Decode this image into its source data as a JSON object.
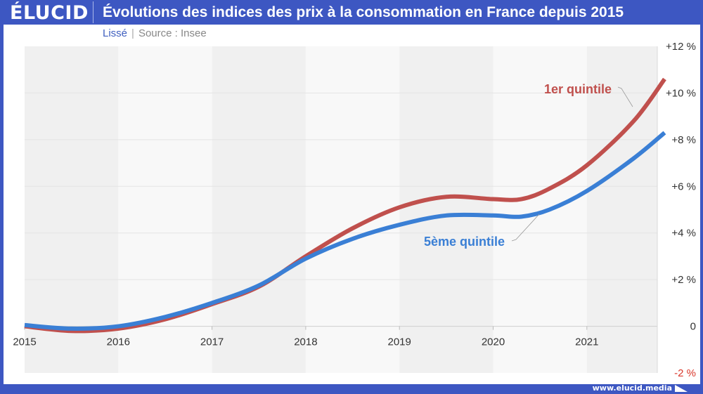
{
  "header": {
    "logo": "ÉLUCID",
    "title": "Évolutions des indices des prix à la consommation en France depuis 2015"
  },
  "subtitle": {
    "smoothing": "Lissé",
    "separator": "|",
    "source": "Source : Insee"
  },
  "footer": {
    "url": "www.elucid.media"
  },
  "colors": {
    "brand": "#3d57c2",
    "series_1": "#c0504d",
    "series_2": "#3a7fd5",
    "negative_tick": "#d9372b"
  },
  "chart_data": {
    "type": "line",
    "title": "Évolutions des indices des prix à la consommation en France depuis 2015",
    "subtitle": "Lissé | Source : Insee",
    "xlabel": "",
    "ylabel": "",
    "xlim": [
      2015,
      2021.83
    ],
    "ylim": [
      -2,
      12
    ],
    "x_ticks": [
      "2015",
      "2016",
      "2017",
      "2018",
      "2019",
      "2020",
      "2021"
    ],
    "y_ticks": [
      "+12 %",
      "+10 %",
      "+8 %",
      "+6 %",
      "+4 %",
      "+2 %",
      "0",
      "-2 %"
    ],
    "y_tick_values": [
      12,
      10,
      8,
      6,
      4,
      2,
      0,
      -2
    ],
    "y_axis_position": "right",
    "grid": true,
    "legend": "inline-labels",
    "x": [
      2015,
      2015.5,
      2016,
      2016.5,
      2017,
      2017.5,
      2018,
      2018.5,
      2019,
      2019.5,
      2020,
      2020.3,
      2020.6,
      2021,
      2021.5,
      2021.83
    ],
    "series": [
      {
        "name": "1er quintile",
        "color": "#c0504d",
        "values": [
          0,
          -0.2,
          -0.1,
          0.3,
          0.95,
          1.7,
          3.0,
          4.2,
          5.1,
          5.55,
          5.45,
          5.45,
          5.9,
          6.9,
          8.8,
          10.6
        ]
      },
      {
        "name": "5ème quintile",
        "color": "#3a7fd5",
        "values": [
          0.05,
          -0.1,
          0.0,
          0.4,
          1.0,
          1.75,
          2.9,
          3.75,
          4.35,
          4.75,
          4.75,
          4.7,
          5.0,
          5.8,
          7.2,
          8.3
        ]
      }
    ],
    "annotations": [
      {
        "text": "1er quintile",
        "series": "1er quintile"
      },
      {
        "text": "5ème quintile",
        "series": "5ème quintile"
      }
    ]
  }
}
